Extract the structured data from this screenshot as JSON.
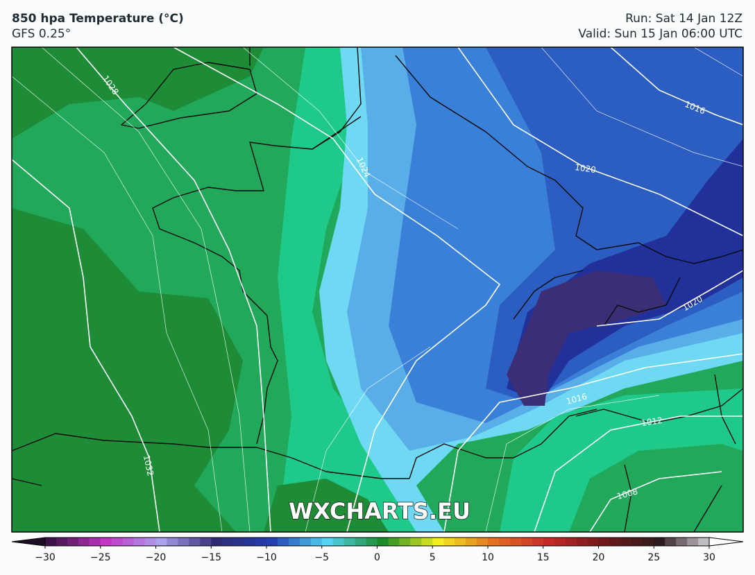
{
  "header": {
    "title": "850 hpa Temperature (°C)",
    "model": "GFS 0.25°",
    "run": "Run: Sat 14 Jan 12Z",
    "valid": "Valid: Sun 15 Jan 06:00 UTC"
  },
  "map": {
    "isobar_labels": [
      "1028",
      "1024",
      "1020",
      "1016",
      "1020",
      "1016",
      "1012",
      "1008",
      "1032"
    ],
    "watermark": "WXCHARTS.EU"
  },
  "colorbar": {
    "range": [
      -30,
      30
    ],
    "ticks": [
      {
        "value": -30,
        "label": "−30"
      },
      {
        "value": -25,
        "label": "−25"
      },
      {
        "value": -20,
        "label": "−20"
      },
      {
        "value": -15,
        "label": "−15"
      },
      {
        "value": -10,
        "label": "−10"
      },
      {
        "value": -5,
        "label": "−5"
      },
      0,
      5,
      10,
      15,
      20,
      25,
      30
    ],
    "colors": [
      "#3a1444",
      "#c236c4",
      "#aaa2ea",
      "#2e2a72",
      "#2440b0",
      "#54d4f2",
      "#1a8a2a",
      "#f2ee22",
      "#e27224",
      "#c42a2a",
      "#6e1a1a",
      "#2e1a1e",
      "#e4e4ec"
    ],
    "extend_colors": [
      "#1c0c24",
      "#ffffff"
    ]
  }
}
